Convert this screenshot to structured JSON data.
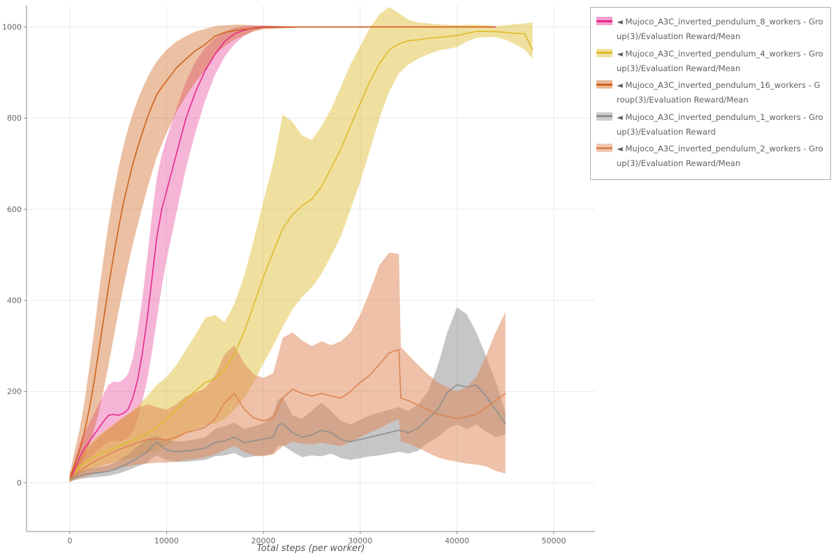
{
  "chart_data": {
    "type": "line",
    "title": "",
    "xlabel": "Total steps (per worker)",
    "ylabel": "",
    "xlim": [
      -4470,
      54260
    ],
    "ylim": [
      -107,
      1047
    ],
    "xticks": [
      0,
      10000,
      20000,
      30000,
      40000,
      50000
    ],
    "yticks": [
      0,
      200,
      400,
      600,
      800,
      1000
    ],
    "grid": true,
    "legend_position": "top-right",
    "style": {
      "grid_color": "#e9e9e9",
      "axis_color": "#8c8c8c",
      "tick_label_color": "#666666",
      "text_color": "#555555",
      "legend_border_color": "#aeaeae",
      "line_width": 1.6
    },
    "series": [
      {
        "name": "8_workers",
        "label": "◄ Mujoco_A3C_inverted_pendulum_8_workers - Group(3)/Evaluation Reward/Mean",
        "color": "#e62a8d",
        "band_alpha": 0.35,
        "x": [
          0,
          500,
          1000,
          1500,
          2000,
          2500,
          3000,
          3500,
          4000,
          4500,
          5000,
          5500,
          6000,
          6500,
          7000,
          7500,
          8000,
          8500,
          9000,
          9500,
          10000,
          11000,
          12000,
          13000,
          14000,
          15000,
          16000,
          17000,
          18000,
          19000,
          20000,
          22000,
          26000,
          30000,
          35000,
          40000,
          44000
        ],
        "mean": [
          5,
          30,
          55,
          75,
          90,
          105,
          120,
          135,
          148,
          150,
          148,
          152,
          160,
          185,
          225,
          285,
          360,
          450,
          540,
          600,
          640,
          720,
          800,
          858,
          905,
          940,
          968,
          985,
          993,
          998,
          1000,
          1000,
          1000,
          1000,
          1000,
          1000,
          1000
        ],
        "lo": [
          0,
          15,
          30,
          45,
          55,
          62,
          72,
          82,
          90,
          92,
          90,
          93,
          98,
          112,
          140,
          180,
          225,
          290,
          360,
          430,
          490,
          590,
          690,
          770,
          840,
          895,
          935,
          962,
          980,
          992,
          998,
          1000,
          1000,
          1000,
          1000,
          1000,
          1000
        ],
        "hi": [
          12,
          50,
          85,
          110,
          130,
          152,
          172,
          195,
          215,
          222,
          220,
          226,
          238,
          272,
          330,
          405,
          495,
          590,
          670,
          720,
          755,
          820,
          880,
          925,
          955,
          975,
          990,
          998,
          1002,
          1003,
          1003,
          1001,
          1000,
          1000,
          1000,
          1000,
          1000
        ]
      },
      {
        "name": "4_workers",
        "label": "◄ Mujoco_A3C_inverted_pendulum_4_workers - Group(3)/Evaluation Reward/Mean",
        "color": "#ddbb2a",
        "band_alpha": 0.45,
        "x": [
          0,
          1000,
          2000,
          3000,
          4000,
          5000,
          6000,
          7000,
          8000,
          9000,
          10000,
          11000,
          12000,
          13000,
          14000,
          15000,
          16000,
          17000,
          18000,
          19000,
          20000,
          21000,
          22000,
          23000,
          24000,
          25000,
          26000,
          27000,
          28000,
          29000,
          30000,
          31000,
          32000,
          33000,
          34000,
          35000,
          36000,
          37000,
          38000,
          39000,
          40000,
          41000,
          42000,
          43000,
          44000,
          45000,
          46000,
          47000,
          47800
        ],
        "mean": [
          5,
          35,
          50,
          62,
          70,
          80,
          88,
          97,
          108,
          122,
          140,
          160,
          182,
          202,
          220,
          228,
          248,
          282,
          330,
          390,
          452,
          505,
          558,
          588,
          608,
          622,
          650,
          690,
          732,
          782,
          832,
          880,
          920,
          950,
          963,
          970,
          972,
          975,
          977,
          979,
          981,
          986,
          990,
          990,
          990,
          988,
          986,
          985,
          950
        ],
        "lo": [
          0,
          18,
          28,
          36,
          42,
          48,
          52,
          58,
          64,
          72,
          82,
          95,
          108,
          118,
          126,
          130,
          140,
          160,
          185,
          220,
          262,
          300,
          342,
          380,
          408,
          428,
          458,
          498,
          540,
          600,
          660,
          730,
          800,
          858,
          898,
          918,
          930,
          940,
          948,
          952,
          956,
          968,
          976,
          978,
          978,
          972,
          962,
          950,
          930
        ],
        "hi": [
          14,
          58,
          85,
          105,
          120,
          135,
          150,
          168,
          190,
          215,
          232,
          258,
          292,
          325,
          362,
          368,
          352,
          392,
          452,
          532,
          618,
          700,
          808,
          792,
          762,
          752,
          782,
          820,
          868,
          918,
          958,
          998,
          1028,
          1044,
          1030,
          1016,
          1010,
          1008,
          1006,
          1005,
          1004,
          1005,
          1005,
          1004,
          1002,
          1004,
          1006,
          1008,
          1010
        ]
      },
      {
        "name": "16_workers",
        "label": "◄ Mujoco_A3C_inverted_pendulum_16_workers - Group(3)/Evaluation Reward/Mean",
        "color": "#cf6218",
        "band_alpha": 0.4,
        "x": [
          0,
          500,
          1000,
          1500,
          2000,
          2500,
          3000,
          3500,
          4000,
          4500,
          5000,
          5500,
          6000,
          6500,
          7000,
          7500,
          8000,
          8500,
          9000,
          9500,
          10000,
          11000,
          12000,
          13000,
          14000,
          15000,
          16000,
          17000,
          18000,
          19000,
          20000,
          24000,
          28000,
          32000,
          36000,
          40000,
          43800
        ],
        "mean": [
          10,
          40,
          70,
          110,
          160,
          220,
          290,
          360,
          430,
          495,
          555,
          610,
          655,
          698,
          735,
          768,
          800,
          828,
          852,
          868,
          882,
          910,
          930,
          948,
          962,
          980,
          988,
          992,
          995,
          997,
          999,
          1000,
          1000,
          1000,
          1000,
          1000,
          1000
        ],
        "lo": [
          2,
          20,
          38,
          58,
          82,
          115,
          155,
          205,
          258,
          315,
          372,
          425,
          475,
          522,
          565,
          605,
          645,
          682,
          715,
          742,
          768,
          812,
          848,
          880,
          906,
          940,
          958,
          972,
          982,
          990,
          995,
          999,
          1000,
          1000,
          1000,
          1000,
          1000
        ],
        "hi": [
          20,
          70,
          115,
          175,
          250,
          330,
          415,
          495,
          568,
          632,
          688,
          735,
          775,
          810,
          840,
          865,
          888,
          908,
          925,
          938,
          950,
          968,
          980,
          990,
          996,
          1002,
          1004,
          1005,
          1005,
          1004,
          1003,
          1001,
          1000,
          1000,
          1000,
          1000,
          1000
        ]
      },
      {
        "name": "1_workers",
        "label": "◄ Mujoco_A3C_inverted_pendulum_1_workers - Group(3)/Evaluation Reward",
        "color": "#8e8e8e",
        "band_alpha": 0.5,
        "x": [
          0,
          1000,
          2000,
          3000,
          4000,
          5000,
          6000,
          7000,
          8000,
          8500,
          9000,
          10000,
          11000,
          12000,
          13000,
          14000,
          15000,
          16000,
          17000,
          18000,
          19000,
          20000,
          21000,
          21500,
          22000,
          23000,
          24000,
          25000,
          26000,
          27000,
          28000,
          29000,
          30000,
          31000,
          32000,
          33000,
          34000,
          35000,
          36000,
          37000,
          38000,
          39000,
          40000,
          41000,
          42000,
          43000,
          44000,
          45000
        ],
        "mean": [
          8,
          15,
          20,
          22,
          25,
          32,
          42,
          55,
          68,
          80,
          88,
          72,
          68,
          70,
          72,
          76,
          88,
          92,
          100,
          88,
          92,
          96,
          100,
          125,
          130,
          110,
          100,
          105,
          115,
          110,
          95,
          90,
          95,
          100,
          105,
          110,
          115,
          110,
          120,
          140,
          160,
          198,
          215,
          210,
          215,
          190,
          160,
          130
        ],
        "lo": [
          3,
          8,
          11,
          13,
          15,
          20,
          27,
          36,
          44,
          54,
          60,
          50,
          46,
          46,
          48,
          50,
          58,
          60,
          65,
          55,
          58,
          60,
          64,
          80,
          82,
          68,
          56,
          60,
          58,
          64,
          54,
          50,
          54,
          58,
          60,
          64,
          68,
          64,
          70,
          88,
          100,
          118,
          128,
          118,
          128,
          112,
          100,
          106
        ],
        "hi": [
          14,
          24,
          31,
          34,
          38,
          48,
          62,
          80,
          96,
          100,
          102,
          94,
          90,
          92,
          95,
          100,
          118,
          124,
          132,
          118,
          124,
          130,
          150,
          182,
          188,
          148,
          140,
          158,
          176,
          158,
          136,
          128,
          138,
          148,
          154,
          160,
          166,
          158,
          172,
          200,
          255,
          330,
          385,
          370,
          330,
          278,
          222,
          155
        ]
      },
      {
        "name": "2_workers",
        "label": "◄ Mujoco_A3C_inverted_pendulum_2_workers - Group(3)/Evaluation Reward/Mean",
        "color": "#dd8452",
        "band_alpha": 0.5,
        "x": [
          0,
          1000,
          2000,
          3000,
          4000,
          5000,
          6000,
          7000,
          8000,
          9000,
          10000,
          11000,
          12000,
          13000,
          14000,
          15000,
          16000,
          17000,
          18000,
          19000,
          20000,
          21000,
          22000,
          23000,
          24000,
          25000,
          26000,
          27000,
          28000,
          29000,
          30000,
          31000,
          32000,
          33000,
          34000,
          34200,
          35000,
          36000,
          37000,
          38000,
          39000,
          40000,
          41000,
          42000,
          43000,
          44000,
          45000
        ],
        "mean": [
          10,
          25,
          40,
          52,
          62,
          72,
          80,
          88,
          95,
          96,
          94,
          100,
          110,
          115,
          122,
          140,
          175,
          196,
          162,
          142,
          136,
          142,
          186,
          205,
          196,
          190,
          196,
          190,
          186,
          200,
          220,
          236,
          260,
          285,
          292,
          186,
          180,
          170,
          160,
          150,
          146,
          140,
          145,
          150,
          165,
          180,
          196
        ],
        "lo": [
          3,
          10,
          16,
          22,
          27,
          32,
          36,
          40,
          42,
          44,
          44,
          46,
          50,
          52,
          56,
          62,
          72,
          80,
          68,
          60,
          58,
          62,
          80,
          90,
          86,
          84,
          88,
          84,
          80,
          90,
          100,
          110,
          120,
          130,
          140,
          90,
          86,
          76,
          66,
          56,
          50,
          46,
          42,
          40,
          36,
          26,
          20
        ],
        "hi": [
          22,
          48,
          78,
          100,
          118,
          136,
          150,
          164,
          172,
          166,
          160,
          172,
          190,
          198,
          208,
          235,
          282,
          302,
          262,
          238,
          230,
          240,
          318,
          330,
          312,
          300,
          310,
          302,
          310,
          330,
          368,
          420,
          478,
          505,
          502,
          298,
          280,
          258,
          238,
          220,
          210,
          200,
          210,
          232,
          278,
          330,
          375
        ]
      }
    ]
  }
}
